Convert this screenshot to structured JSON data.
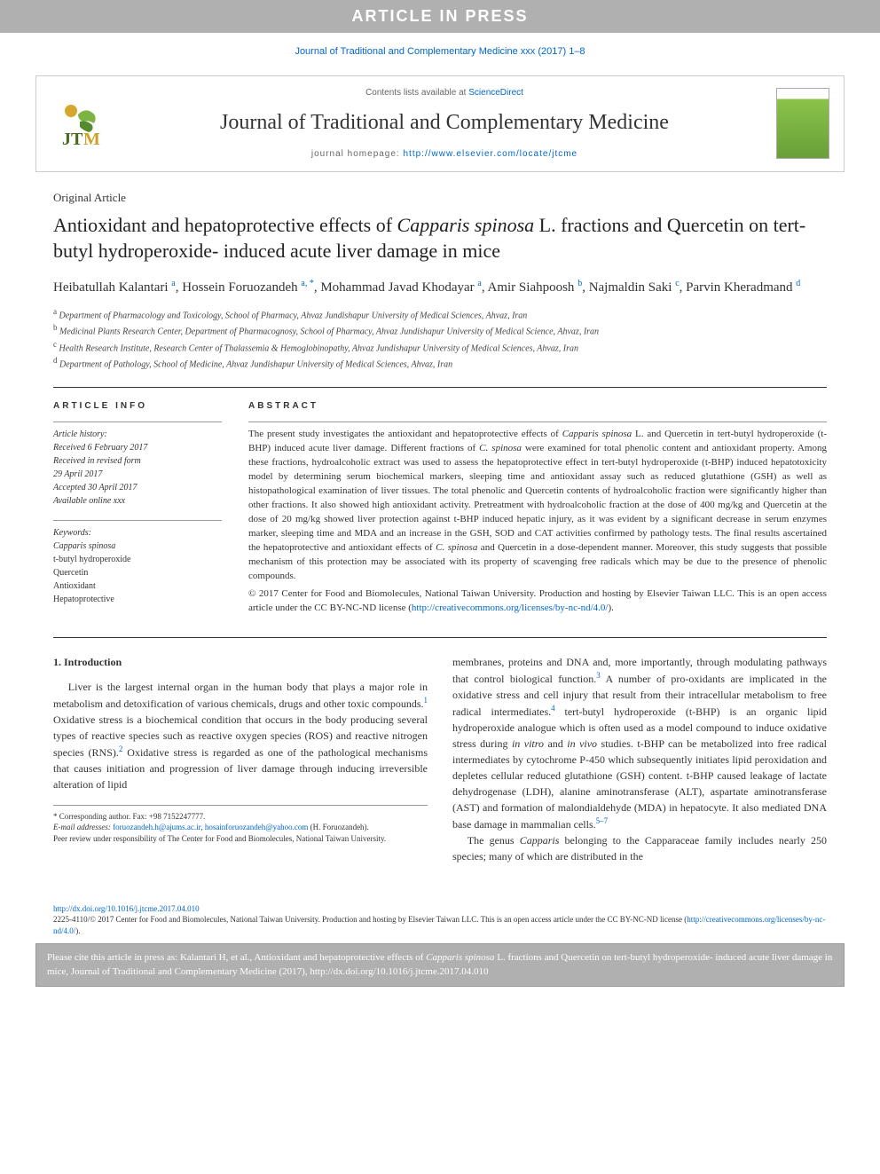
{
  "banner": {
    "text": "ARTICLE IN PRESS"
  },
  "citation_line": "Journal of Traditional and Complementary Medicine xxx (2017) 1–8",
  "header": {
    "contents_prefix": "Contents lists available at ",
    "contents_link": "ScienceDirect",
    "journal_title": "Journal of Traditional and Complementary Medicine",
    "homepage_prefix": "journal homepage: ",
    "homepage_url": "http://www.elsevier.com/locate/jtcme",
    "logo_label": "JTM",
    "cover_label": "Journal of Traditional and Complementary Medicine"
  },
  "article": {
    "type": "Original Article",
    "title_html": "Antioxidant and hepatoprotective effects of <span class=\"italic\">Capparis spinosa</span> L. fractions and Quercetin on tert-butyl hydroperoxide- induced acute liver damage in mice",
    "authors_html": "Heibatullah Kalantari <sup>a</sup>, Hossein Foruozandeh <sup>a, *</sup>, Mohammad Javad Khodayar <sup>a</sup>, Amir Siahpoosh <sup>b</sup>, Najmaldin Saki <sup>c</sup>, Parvin Kheradmand <sup>d</sup>",
    "affiliations": [
      {
        "sup": "a",
        "text": "Department of Pharmacology and Toxicology, School of Pharmacy, Ahvaz Jundishapur University of Medical Sciences, Ahvaz, Iran"
      },
      {
        "sup": "b",
        "text": "Medicinal Plants Research Center, Department of Pharmacognosy, School of Pharmacy, Ahvaz Jundishapur University of Medical Science, Ahvaz, Iran"
      },
      {
        "sup": "c",
        "text": "Health Research Institute, Research Center of Thalassemia & Hemoglobinopathy, Ahvaz Jundishapur University of Medical Sciences, Ahvaz, Iran"
      },
      {
        "sup": "d",
        "text": "Department of Pathology, School of Medicine, Ahvaz Jundishapur University of Medical Sciences, Ahvaz, Iran"
      }
    ]
  },
  "info": {
    "heading": "ARTICLE INFO",
    "history_head": "Article history:",
    "history": [
      "Received 6 February 2017",
      "Received in revised form",
      "29 April 2017",
      "Accepted 30 April 2017",
      "Available online xxx"
    ],
    "keywords_head": "Keywords:",
    "keywords": [
      {
        "text": "Capparis spinosa",
        "italic": true
      },
      {
        "text": "t-butyl hydroperoxide",
        "italic": false
      },
      {
        "text": "Quercetin",
        "italic": false
      },
      {
        "text": "Antioxidant",
        "italic": false
      },
      {
        "text": "Hepatoprotective",
        "italic": false
      }
    ]
  },
  "abstract": {
    "heading": "ABSTRACT",
    "body_html": "The present study investigates the antioxidant and hepatoprotective effects of <span class=\"italic\">Capparis spinosa</span> L. and Quercetin in tert-butyl hydroperoxide (t-BHP) induced acute liver damage. Different fractions of <span class=\"italic\">C. spinosa</span> were examined for total phenolic content and antioxidant property. Among these fractions, hydroalcoholic extract was used to assess the hepatoprotective effect in tert-butyl hydroperoxide (t-BHP) induced hepatotoxicity model by determining serum biochemical markers, sleeping time and antioxidant assay such as reduced glutathione (GSH) as well as histopathological examination of liver tissues. The total phenolic and Quercetin contents of hydroalcoholic fraction were significantly higher than other fractions. It also showed high antioxidant activity. Pretreatment with hydroalcoholic fraction at the dose of 400 mg/kg and Quercetin at the dose of 20 mg/kg showed liver protection against t-BHP induced hepatic injury, as it was evident by a significant decrease in serum enzymes marker, sleeping time and MDA and an increase in the GSH, SOD and CAT activities confirmed by pathology tests. The final results ascertained the hepatoprotective and antioxidant effects of <span class=\"italic\">C. spinosa</span> and Quercetin in a dose-dependent manner. Moreover, this study suggests that possible mechanism of this protection may be associated with its property of scavenging free radicals which may be due to the presence of phenolic compounds.",
    "copyright": "© 2017 Center for Food and Biomolecules, National Taiwan University. Production and hosting by Elsevier Taiwan LLC. This is an open access article under the CC BY-NC-ND license (",
    "license_url": "http://creativecommons.org/licenses/by-nc-nd/4.0/",
    "copyright_close": ")."
  },
  "intro": {
    "heading": "1. Introduction",
    "left_html": "Liver is the largest internal organ in the human body that plays a major role in metabolism and detoxification of various chemicals, drugs and other toxic compounds.<span class=\"sup-ref\">1</span> Oxidative stress is a biochemical condition that occurs in the body producing several types of reactive species such as reactive oxygen species (ROS) and reactive nitrogen species (RNS).<span class=\"sup-ref\">2</span> Oxidative stress is regarded as one of the pathological mechanisms that causes initiation and progression of liver damage through inducing irreversible alteration of lipid",
    "right_html_p1": "membranes, proteins and DNA and, more importantly, through modulating pathways that control biological function.<span class=\"sup-ref\">3</span> A number of pro-oxidants are implicated in the oxidative stress and cell injury that result from their intracellular metabolism to free radical intermediates.<span class=\"sup-ref\">4</span> tert-butyl hydroperoxide (t-BHP) is an organic lipid hydroperoxide analogue which is often used as a model compound to induce oxidative stress during <span class=\"italic\">in vitro</span> and <span class=\"italic\">in vivo</span> studies. t-BHP can be metabolized into free radical intermediates by cytochrome P-450 which subsequently initiates lipid peroxidation and depletes cellular reduced glutathione (GSH) content. t-BHP caused leakage of lactate dehydrogenase (LDH), alanine aminotransferase (ALT), aspartate aminotransferase (AST) and formation of malondialdehyde (MDA) in hepatocyte. It also mediated DNA base damage in mammalian cells.<span class=\"sup-ref\">5–7</span>",
    "right_html_p2": "The genus <span class=\"italic\">Capparis</span> belonging to the Capparaceae family includes nearly 250 species; many of which are distributed in the"
  },
  "footnotes": {
    "corresponding": "* Corresponding author. Fax: +98 7152247777.",
    "email_label": "E-mail addresses:",
    "email1": "foruozandeh.h@ajums.ac.ir",
    "email2": "hosainforuozandeh@yahoo.com",
    "email_name": "(H. Foruozandeh).",
    "peer": "Peer review under responsibility of The Center for Food and Biomolecules, National Taiwan University."
  },
  "doi": {
    "url": "http://dx.doi.org/10.1016/j.jtcme.2017.04.010",
    "issn_line": "2225-4110/© 2017 Center for Food and Biomolecules, National Taiwan University. Production and hosting by Elsevier Taiwan LLC. This is an open access article under the CC BY-NC-ND license (",
    "license_url": "http://creativecommons.org/licenses/by-nc-nd/4.0/",
    "close": ")."
  },
  "cite_box_html": "Please cite this article in press as: Kalantari H, et al., Antioxidant and hepatoprotective effects of <span class=\"italic\">Capparis spinosa</span> L. fractions and Quercetin on tert-butyl hydroperoxide- induced acute liver damage in mice, Journal of Traditional and Complementary Medicine (2017), http://dx.doi.org/10.1016/j.jtcme.2017.04.010",
  "colors": {
    "banner_bg": "#b0b0b0",
    "link": "#0066cc",
    "text": "#333333",
    "border": "#cccccc",
    "rule": "#999999"
  }
}
